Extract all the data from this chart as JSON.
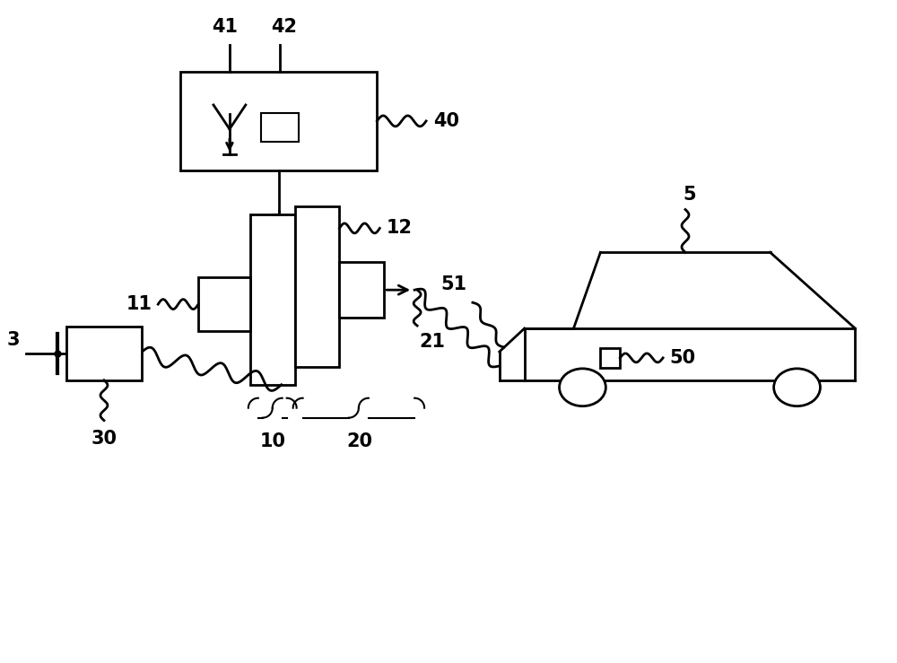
{
  "bg_color": "#ffffff",
  "line_color": "#000000",
  "lw": 2.0,
  "fig_width": 10.0,
  "fig_height": 7.39
}
